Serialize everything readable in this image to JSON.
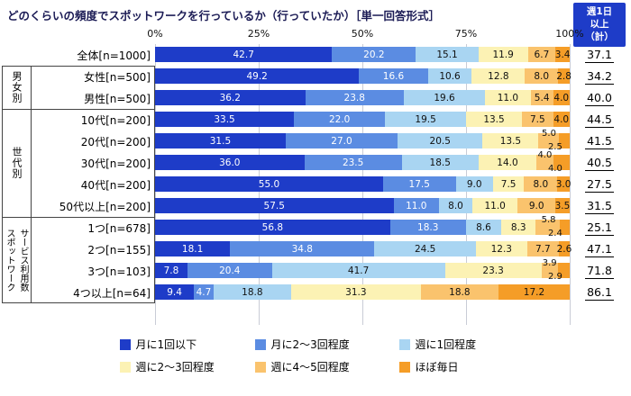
{
  "title": "どのくらいの頻度でスポットワークを行っているか（行っていたか）［単一回答形式］",
  "axis_ticks": [
    "0%",
    "25%",
    "50%",
    "75%",
    "100%"
  ],
  "summary": {
    "header_lines": [
      "週1日",
      "以上",
      "（計）"
    ]
  },
  "colors": {
    "series": [
      "#1e3cc8",
      "#5b8ce2",
      "#a9d5f2",
      "#fcf2b4",
      "#fac36d",
      "#f59d27"
    ],
    "header_bg": "#1e3cc8",
    "gridline": "#c9ccd6"
  },
  "chart_data": {
    "type": "bar",
    "orientation": "horizontal-stacked",
    "xlim": [
      0,
      100
    ],
    "x_ticks": [
      0,
      25,
      50,
      75,
      100
    ],
    "grid": true,
    "legend_position": "bottom",
    "series": [
      "月に1回以下",
      "月に2～3回程度",
      "週に1回程度",
      "週に2～3回程度",
      "週に4～5回程度",
      "ほぼ毎日"
    ],
    "summary_column": "週1日以上（計）",
    "groups": [
      {
        "name": null,
        "rows": [
          {
            "label": "全体[n=1000]",
            "values": [
              42.7,
              20.2,
              15.1,
              11.9,
              6.7,
              3.4
            ],
            "total": 37.1,
            "stack_last_two": false
          }
        ]
      },
      {
        "name": [
          "男女別"
        ],
        "rows": [
          {
            "label": "女性[n=500]",
            "values": [
              49.2,
              16.6,
              10.6,
              12.8,
              8.0,
              2.8
            ],
            "total": 34.2,
            "stack_last_two": false
          },
          {
            "label": "男性[n=500]",
            "values": [
              36.2,
              23.8,
              19.6,
              11.0,
              5.4,
              4.0
            ],
            "total": 40.0,
            "stack_last_two": false
          }
        ]
      },
      {
        "name": [
          "世代別"
        ],
        "rows": [
          {
            "label": "10代[n=200]",
            "values": [
              33.5,
              22.0,
              19.5,
              13.5,
              7.5,
              4.0
            ],
            "total": 44.5,
            "stack_last_two": false
          },
          {
            "label": "20代[n=200]",
            "values": [
              31.5,
              27.0,
              20.5,
              13.5,
              5.0,
              2.5
            ],
            "total": 41.5,
            "stack_last_two": true
          },
          {
            "label": "30代[n=200]",
            "values": [
              36.0,
              23.5,
              18.5,
              14.0,
              4.0,
              4.0
            ],
            "total": 40.5,
            "stack_last_two": true
          },
          {
            "label": "40代[n=200]",
            "values": [
              55.0,
              17.5,
              9.0,
              7.5,
              8.0,
              3.0
            ],
            "total": 27.5,
            "stack_last_two": false
          },
          {
            "label": "50代以上[n=200]",
            "values": [
              57.5,
              11.0,
              8.0,
              11.0,
              9.0,
              3.5
            ],
            "total": 31.5,
            "stack_last_two": false
          }
        ]
      },
      {
        "name": [
          "スポットワーク",
          "サービス利用数"
        ],
        "rows": [
          {
            "label": "1つ[n=678]",
            "values": [
              56.8,
              18.3,
              8.6,
              8.3,
              5.8,
              2.4
            ],
            "total": 25.1,
            "stack_last_two": true
          },
          {
            "label": "2つ[n=155]",
            "values": [
              18.1,
              34.8,
              24.5,
              12.3,
              7.7,
              2.6
            ],
            "total": 47.1,
            "stack_last_two": false
          },
          {
            "label": "3つ[n=103]",
            "values": [
              7.8,
              20.4,
              41.7,
              23.3,
              3.9,
              2.9
            ],
            "total": 71.8,
            "stack_last_two": true
          },
          {
            "label": "4つ以上[n=64]",
            "values": [
              9.4,
              4.7,
              18.8,
              31.3,
              18.8,
              17.2
            ],
            "total": 86.1,
            "stack_last_two": false
          }
        ]
      }
    ]
  }
}
